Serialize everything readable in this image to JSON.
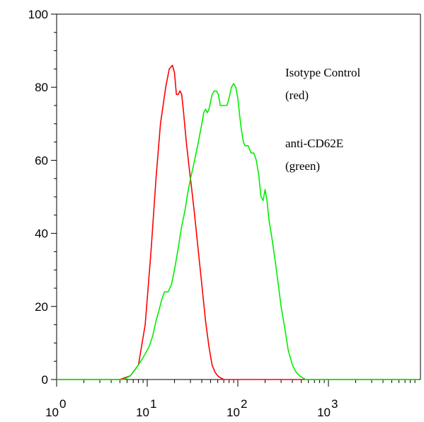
{
  "chart_data": {
    "type": "line",
    "title": "",
    "xlabel": "",
    "ylabel": "",
    "x_scale": "log",
    "xlim": [
      1,
      10000
    ],
    "ylim": [
      0,
      100
    ],
    "grid": false,
    "y_ticks": [
      0,
      20,
      40,
      60,
      80,
      100
    ],
    "x_ticks": [
      {
        "base": "10",
        "exp": "0",
        "value": 1
      },
      {
        "base": "10",
        "exp": "1",
        "value": 10
      },
      {
        "base": "10",
        "exp": "2",
        "value": 100
      },
      {
        "base": "10",
        "exp": "3",
        "value": 1000
      }
    ],
    "legend": {
      "placement": "top-right",
      "entries": [
        {
          "line1": "Isotype Control",
          "line2": "(red)"
        },
        {
          "line1": "anti-CD62E",
          "line2": "(green)"
        }
      ]
    },
    "series": [
      {
        "color": "#ff0000",
        "x": [
          1,
          5,
          6.5,
          8,
          9.5,
          11,
          12.5,
          14,
          16,
          17.5,
          19,
          20,
          21,
          22,
          23,
          24,
          25,
          27,
          29,
          31,
          33,
          36,
          40,
          44,
          48,
          52,
          56,
          60,
          64,
          70,
          80,
          10000
        ],
        "y": [
          0,
          0,
          1,
          4,
          15,
          35,
          55,
          70,
          80,
          85,
          86,
          84,
          78,
          78,
          79,
          78,
          74,
          65,
          58,
          52,
          46,
          37,
          26,
          16,
          9,
          4,
          2,
          1,
          0.5,
          0,
          0,
          0
        ]
      },
      {
        "color": "#00ee00",
        "x": [
          1,
          5.5,
          6.5,
          7.5,
          8.5,
          9.5,
          10.5,
          11.5,
          12.5,
          13.5,
          14.5,
          15.5,
          17,
          18.5,
          20,
          22,
          24,
          26,
          28,
          30,
          32,
          34,
          36,
          38,
          40,
          42,
          44,
          46,
          48,
          50,
          52,
          55,
          58,
          61,
          64,
          67,
          70,
          73,
          76,
          80,
          85,
          90,
          95,
          100,
          105,
          110,
          115,
          120,
          130,
          140,
          150,
          160,
          170,
          180,
          190,
          200,
          210,
          220,
          240,
          260,
          280,
          300,
          330,
          360,
          400,
          440,
          480,
          520,
          560,
          600,
          640,
          700,
          10000
        ],
        "y": [
          0,
          0,
          1,
          3,
          5,
          7,
          9,
          12,
          16,
          19,
          22,
          24,
          24,
          26,
          30,
          36,
          42,
          46,
          51,
          55,
          58,
          61,
          64,
          67,
          70,
          73,
          74,
          73,
          74,
          76,
          78,
          79,
          79,
          78,
          75,
          75,
          75,
          75,
          75,
          77,
          80,
          81,
          80,
          77,
          72,
          68,
          65,
          64,
          64,
          62,
          62,
          60,
          56,
          50,
          49,
          52,
          49,
          44,
          38,
          32,
          26,
          20,
          14,
          8,
          4,
          2,
          1,
          0.5,
          0,
          0,
          0,
          0,
          0
        ]
      }
    ]
  }
}
